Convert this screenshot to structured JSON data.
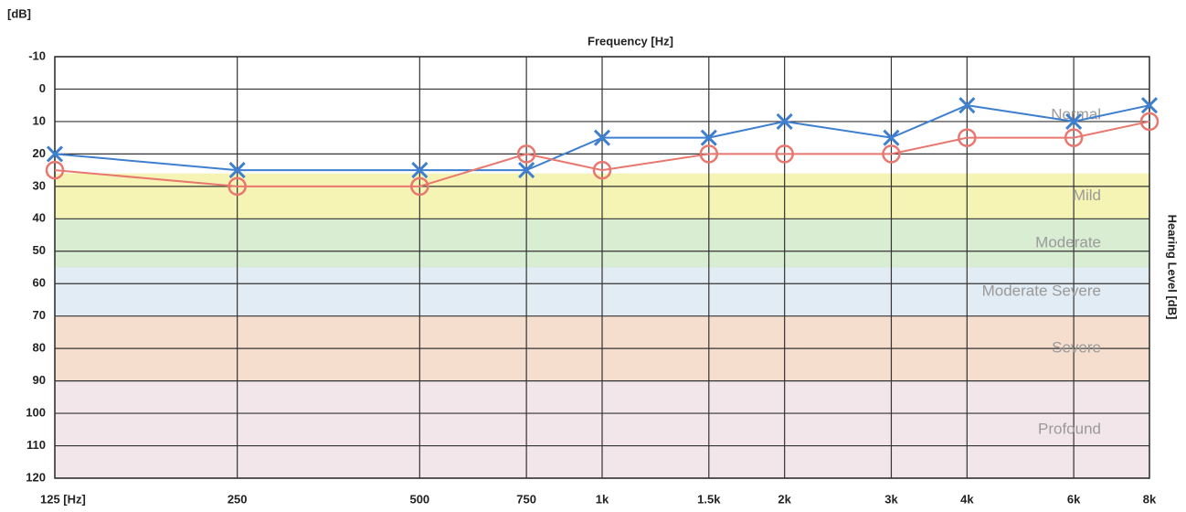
{
  "chart_data": {
    "type": "audiogram",
    "title": "Frequency [Hz]",
    "y_unit_label": "[dB]",
    "y2_label": "Hearing Level [dB]",
    "x_scale": "log",
    "y_inverted": true,
    "grid": true,
    "x": [
      125,
      250,
      500,
      750,
      1000,
      1500,
      2000,
      3000,
      4000,
      6000,
      8000
    ],
    "xlim": [
      125,
      8000
    ],
    "xticks": [
      {
        "value": 125,
        "label": "125 [Hz]"
      },
      250,
      500,
      750,
      {
        "value": 1000,
        "label": "1k"
      },
      {
        "value": 1500,
        "label": "1.5k"
      },
      {
        "value": 2000,
        "label": "2k"
      },
      {
        "value": 3000,
        "label": "3k"
      },
      {
        "value": 4000,
        "label": "4k"
      },
      {
        "value": 6000,
        "label": "6k"
      },
      {
        "value": 8000,
        "label": "8k"
      }
    ],
    "ylim": [
      -10,
      120
    ],
    "yticks": [
      -10,
      0,
      10,
      20,
      30,
      40,
      50,
      60,
      70,
      80,
      90,
      100,
      110,
      120
    ],
    "bands": [
      {
        "name": "Normal",
        "range": [
          -10,
          26
        ],
        "color": "#ffffff"
      },
      {
        "name": "Mild",
        "range": [
          26,
          40
        ],
        "color": "#f6f4b4"
      },
      {
        "name": "Moderate",
        "range": [
          40,
          55
        ],
        "color": "#d8edd2"
      },
      {
        "name": "Moderate Severe",
        "range": [
          55,
          70
        ],
        "color": "#e2ecf4"
      },
      {
        "name": "Severe",
        "range": [
          70,
          90
        ],
        "color": "#f6dece"
      },
      {
        "name": "Profound",
        "range": [
          90,
          120
        ],
        "color": "#f3e6ea"
      }
    ],
    "series": [
      {
        "color": "#3f7fcf",
        "marker": "x",
        "values": [
          20,
          25,
          25,
          25,
          15,
          15,
          10,
          15,
          5,
          10,
          5
        ]
      },
      {
        "color": "#e8776f",
        "marker": "o",
        "values": [
          25,
          30,
          30,
          20,
          25,
          20,
          20,
          20,
          15,
          15,
          10
        ]
      }
    ]
  }
}
